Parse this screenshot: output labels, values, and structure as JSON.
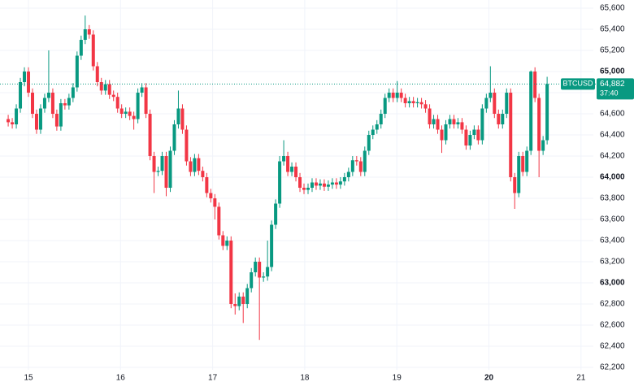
{
  "chart_data": {
    "type": "candlestick",
    "symbol": "BTCUSD",
    "last_price": {
      "value": 64882,
      "label": "64,882"
    },
    "countdown": "37:40",
    "up_color": "#089981",
    "down_color": "#f23645",
    "grid": true,
    "xlim": [
      14.691,
      21.134
    ],
    "xticks": [
      15,
      16,
      17,
      18,
      19,
      20,
      21
    ],
    "ylim": [
      62177,
      65677
    ],
    "yticks": [
      {
        "value": 62200,
        "label": "62,200"
      },
      {
        "value": 62400,
        "label": "62,400"
      },
      {
        "value": 62600,
        "label": "62,600"
      },
      {
        "value": 62800,
        "label": "62,800"
      },
      {
        "value": 63000,
        "label": "63,000"
      },
      {
        "value": 63200,
        "label": "63,200"
      },
      {
        "value": 63400,
        "label": "63,400"
      },
      {
        "value": 63600,
        "label": "63,600"
      },
      {
        "value": 63800,
        "label": "63,800"
      },
      {
        "value": 64000,
        "label": "64,000"
      },
      {
        "value": 64200,
        "label": "64,200"
      },
      {
        "value": 64400,
        "label": "64,400"
      },
      {
        "value": 64600,
        "label": "64,600"
      },
      {
        "value": 64800,
        "label": "64,800"
      },
      {
        "value": 65000,
        "label": "65,000"
      },
      {
        "value": 65200,
        "label": "65,200"
      },
      {
        "value": 65400,
        "label": "65,400"
      },
      {
        "value": 65600,
        "label": "65,600"
      }
    ],
    "x": [
      14.78,
      14.824,
      14.868,
      14.912,
      14.956,
      15.0,
      15.044,
      15.088,
      15.132,
      15.176,
      15.22,
      15.264,
      15.308,
      15.352,
      15.396,
      15.44,
      15.484,
      15.528,
      15.572,
      15.616,
      15.66,
      15.704,
      15.748,
      15.792,
      15.836,
      15.88,
      15.924,
      15.968,
      16.012,
      16.056,
      16.1,
      16.144,
      16.188,
      16.232,
      16.276,
      16.32,
      16.364,
      16.408,
      16.452,
      16.496,
      16.54,
      16.584,
      16.628,
      16.672,
      16.716,
      16.76,
      16.804,
      16.848,
      16.892,
      16.936,
      16.98,
      17.024,
      17.068,
      17.112,
      17.156,
      17.2,
      17.244,
      17.288,
      17.332,
      17.376,
      17.42,
      17.464,
      17.508,
      17.552,
      17.596,
      17.64,
      17.684,
      17.728,
      17.772,
      17.816,
      17.86,
      17.904,
      17.948,
      17.992,
      18.036,
      18.08,
      18.124,
      18.168,
      18.212,
      18.256,
      18.3,
      18.344,
      18.388,
      18.432,
      18.476,
      18.52,
      18.564,
      18.608,
      18.652,
      18.696,
      18.74,
      18.784,
      18.828,
      18.872,
      18.916,
      18.96,
      19.004,
      19.048,
      19.092,
      19.136,
      19.18,
      19.224,
      19.268,
      19.312,
      19.356,
      19.4,
      19.444,
      19.488,
      19.532,
      19.576,
      19.62,
      19.664,
      19.708,
      19.752,
      19.796,
      19.84,
      19.884,
      19.928,
      19.972,
      20.016,
      20.06,
      20.104,
      20.148,
      20.192,
      20.236,
      20.28,
      20.324,
      20.368,
      20.412,
      20.456,
      20.5,
      20.544,
      20.588,
      20.632
    ],
    "candles": [
      [
        64550,
        64590,
        64480,
        64520
      ],
      [
        64520,
        64560,
        64460,
        64500
      ],
      [
        64500,
        64690,
        64460,
        64650
      ],
      [
        64650,
        64940,
        64610,
        64900
      ],
      [
        64900,
        65040,
        64860,
        65000
      ],
      [
        65000,
        65040,
        64760,
        64800
      ],
      [
        64800,
        64840,
        64560,
        64600
      ],
      [
        64600,
        64640,
        64410,
        64450
      ],
      [
        64450,
        64690,
        64410,
        64650
      ],
      [
        64650,
        64790,
        64610,
        64750
      ],
      [
        64750,
        65200,
        64710,
        64800
      ],
      [
        64800,
        64840,
        64560,
        64600
      ],
      [
        64600,
        64640,
        64440,
        64480
      ],
      [
        64480,
        64740,
        64440,
        64700
      ],
      [
        64700,
        64740,
        64640,
        64680
      ],
      [
        64680,
        64790,
        64640,
        64750
      ],
      [
        64750,
        64890,
        64710,
        64850
      ],
      [
        64850,
        65190,
        64810,
        65150
      ],
      [
        65150,
        65340,
        65110,
        65300
      ],
      [
        65300,
        65530,
        65260,
        65400
      ],
      [
        65400,
        65440,
        65310,
        65350
      ],
      [
        65350,
        65390,
        65010,
        65050
      ],
      [
        65050,
        65090,
        64860,
        64900
      ],
      [
        64900,
        64940,
        64780,
        64820
      ],
      [
        64820,
        64920,
        64780,
        64880
      ],
      [
        64880,
        64920,
        64740,
        64780
      ],
      [
        64780,
        64820,
        64720,
        64760
      ],
      [
        64760,
        64800,
        64610,
        64650
      ],
      [
        64650,
        64690,
        64560,
        64600
      ],
      [
        64600,
        64660,
        64560,
        64620
      ],
      [
        64620,
        64660,
        64540,
        64580
      ],
      [
        64580,
        64620,
        64450,
        64550
      ],
      [
        64550,
        64840,
        64510,
        64800
      ],
      [
        64800,
        64890,
        64760,
        64850
      ],
      [
        64850,
        64890,
        64560,
        64600
      ],
      [
        64600,
        64640,
        64160,
        64200
      ],
      [
        64200,
        64240,
        63850,
        64050
      ],
      [
        64050,
        64100,
        64010,
        64060
      ],
      [
        64060,
        64240,
        64020,
        64200
      ],
      [
        64200,
        64240,
        63820,
        63900
      ],
      [
        63900,
        64290,
        63860,
        64250
      ],
      [
        64250,
        64540,
        64210,
        64500
      ],
      [
        64500,
        64820,
        64460,
        64650
      ],
      [
        64650,
        64690,
        64410,
        64450
      ],
      [
        64450,
        64490,
        64110,
        64150
      ],
      [
        64150,
        64190,
        64010,
        64050
      ],
      [
        64050,
        64220,
        64010,
        64180
      ],
      [
        64180,
        64220,
        64020,
        64060
      ],
      [
        64060,
        64100,
        63960,
        64000
      ],
      [
        64000,
        64040,
        63810,
        63850
      ],
      [
        63850,
        63890,
        63760,
        63800
      ],
      [
        63800,
        63840,
        63600,
        63720
      ],
      [
        63720,
        63760,
        63410,
        63450
      ],
      [
        63450,
        63490,
        63310,
        63350
      ],
      [
        63350,
        63440,
        63310,
        63400
      ],
      [
        63400,
        63440,
        62760,
        62800
      ],
      [
        62800,
        62900,
        62700,
        62780
      ],
      [
        62780,
        62910,
        62740,
        62870
      ],
      [
        62870,
        62910,
        62620,
        62800
      ],
      [
        62800,
        62990,
        62760,
        62950
      ],
      [
        62950,
        63140,
        62910,
        63100
      ],
      [
        63100,
        63240,
        63060,
        63200
      ],
      [
        63200,
        63240,
        62460,
        63050
      ],
      [
        63050,
        63100,
        63010,
        63060
      ],
      [
        63060,
        63400,
        63020,
        63150
      ],
      [
        63150,
        63590,
        63110,
        63550
      ],
      [
        63550,
        63790,
        63510,
        63750
      ],
      [
        63750,
        64200,
        63710,
        64150
      ],
      [
        64150,
        64350,
        64110,
        64200
      ],
      [
        64200,
        64240,
        64010,
        64050
      ],
      [
        64050,
        64140,
        64010,
        64100
      ],
      [
        64100,
        64140,
        63960,
        64000
      ],
      [
        64000,
        64040,
        63860,
        63900
      ],
      [
        63900,
        63940,
        63840,
        63880
      ],
      [
        63880,
        63940,
        63840,
        63900
      ],
      [
        63900,
        63990,
        63860,
        63950
      ],
      [
        63950,
        63990,
        63880,
        63920
      ],
      [
        63920,
        63980,
        63880,
        63940
      ],
      [
        63940,
        63980,
        63870,
        63910
      ],
      [
        63910,
        63970,
        63870,
        63930
      ],
      [
        63930,
        63990,
        63890,
        63950
      ],
      [
        63950,
        63990,
        63890,
        63930
      ],
      [
        63930,
        64000,
        63890,
        63960
      ],
      [
        63960,
        64040,
        63920,
        64000
      ],
      [
        64000,
        64090,
        63960,
        64050
      ],
      [
        64050,
        64200,
        64010,
        64160
      ],
      [
        64160,
        64200,
        64110,
        64150
      ],
      [
        64150,
        64190,
        64010,
        64050
      ],
      [
        64050,
        64290,
        64010,
        64250
      ],
      [
        64250,
        64440,
        64210,
        64400
      ],
      [
        64400,
        64490,
        64360,
        64450
      ],
      [
        64450,
        64540,
        64410,
        64500
      ],
      [
        64500,
        64640,
        64460,
        64600
      ],
      [
        64600,
        64790,
        64560,
        64750
      ],
      [
        64750,
        64840,
        64710,
        64800
      ],
      [
        64800,
        64840,
        64710,
        64750
      ],
      [
        64750,
        64910,
        64710,
        64800
      ],
      [
        64800,
        64840,
        64710,
        64750
      ],
      [
        64750,
        64790,
        64660,
        64700
      ],
      [
        64700,
        64760,
        64660,
        64720
      ],
      [
        64720,
        64760,
        64660,
        64700
      ],
      [
        64700,
        64750,
        64660,
        64710
      ],
      [
        64710,
        64750,
        64650,
        64690
      ],
      [
        64690,
        64730,
        64610,
        64650
      ],
      [
        64650,
        64690,
        64460,
        64500
      ],
      [
        64500,
        64590,
        64460,
        64550
      ],
      [
        64550,
        64590,
        64410,
        64450
      ],
      [
        64450,
        64490,
        64230,
        64350
      ],
      [
        64350,
        64540,
        64310,
        64500
      ],
      [
        64500,
        64590,
        64460,
        64550
      ],
      [
        64550,
        64590,
        64460,
        64500
      ],
      [
        64500,
        64560,
        64460,
        64520
      ],
      [
        64520,
        64560,
        64410,
        64450
      ],
      [
        64450,
        64490,
        64260,
        64300
      ],
      [
        64300,
        64440,
        64260,
        64400
      ],
      [
        64400,
        64490,
        64360,
        64450
      ],
      [
        64450,
        64490,
        64310,
        64350
      ],
      [
        64350,
        64690,
        64310,
        64650
      ],
      [
        64650,
        64790,
        64610,
        64750
      ],
      [
        64750,
        65050,
        64710,
        64800
      ],
      [
        64800,
        64840,
        64560,
        64600
      ],
      [
        64600,
        64640,
        64460,
        64500
      ],
      [
        64500,
        64640,
        64460,
        64600
      ],
      [
        64600,
        64840,
        64560,
        64800
      ],
      [
        64800,
        64840,
        63960,
        64000
      ],
      [
        64000,
        64040,
        63700,
        63850
      ],
      [
        63850,
        64240,
        63810,
        64200
      ],
      [
        64200,
        64240,
        64010,
        64050
      ],
      [
        64050,
        64290,
        64010,
        64250
      ],
      [
        64250,
        65010,
        64210,
        65000
      ],
      [
        65000,
        65040,
        64710,
        64750
      ],
      [
        64750,
        64790,
        64000,
        64250
      ],
      [
        64250,
        64390,
        64210,
        64350
      ],
      [
        64350,
        64950,
        64310,
        64882
      ]
    ]
  }
}
